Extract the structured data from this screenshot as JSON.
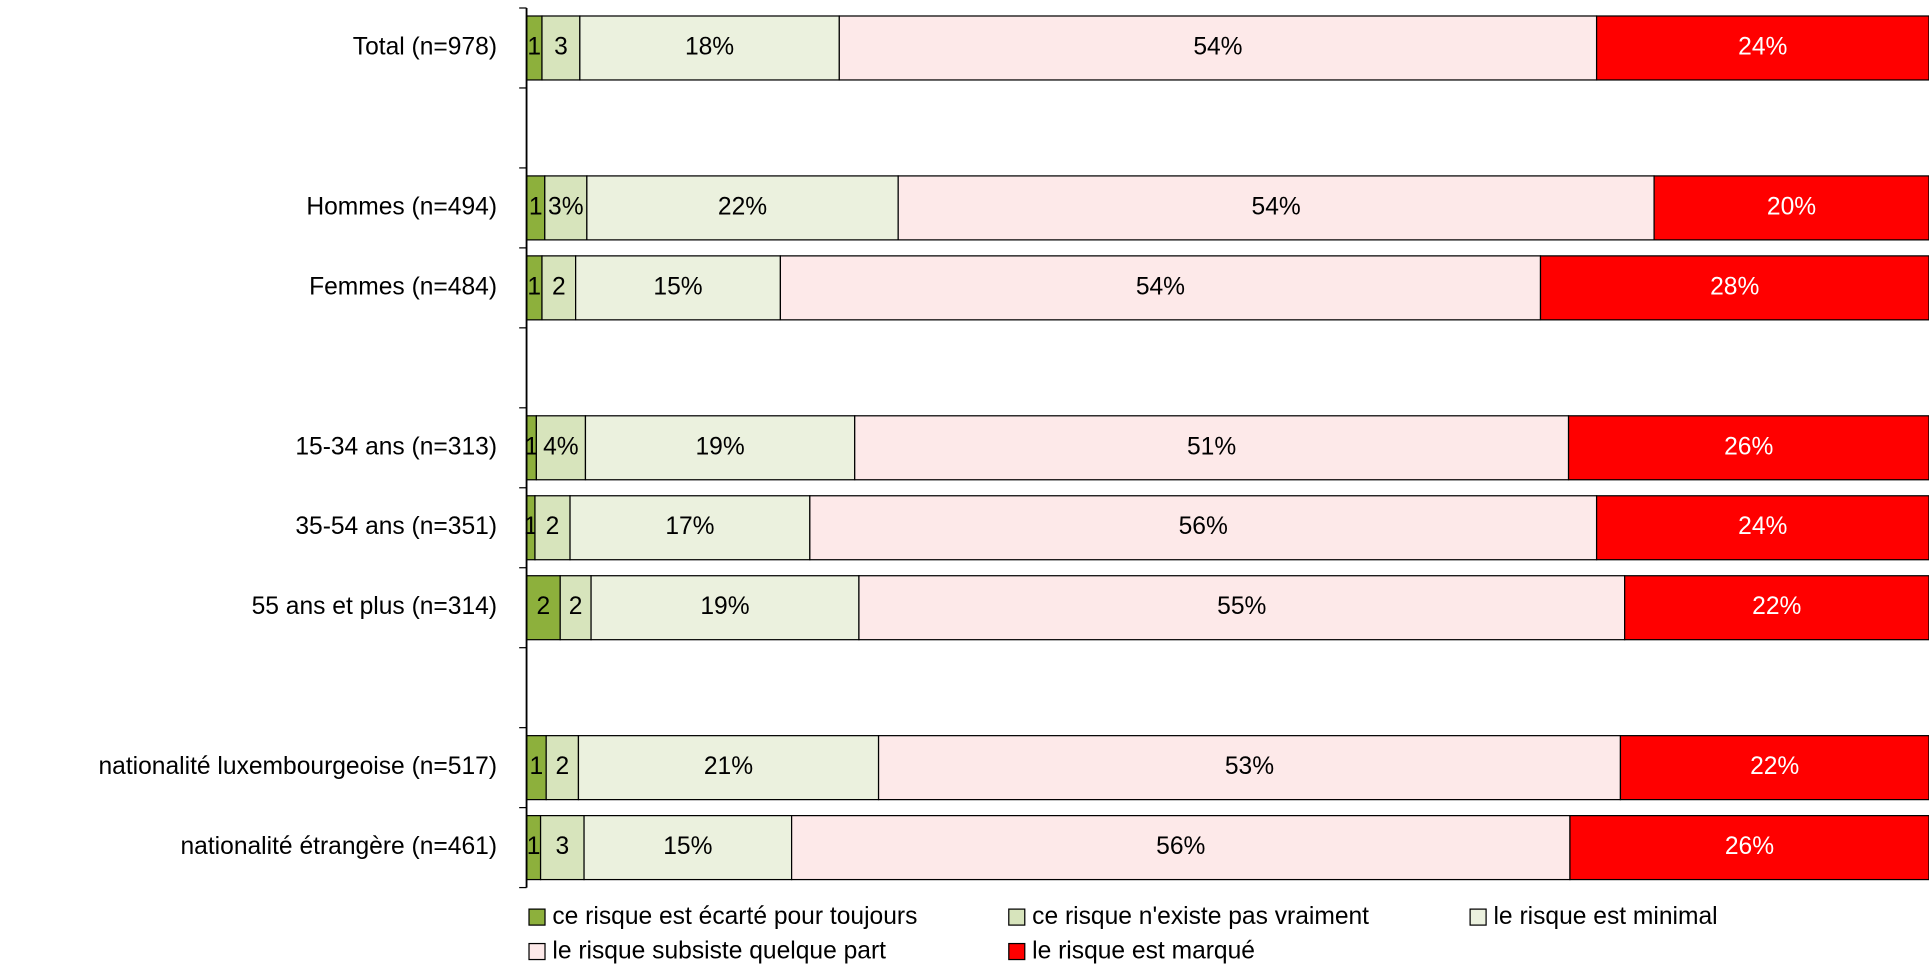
{
  "chart_data": {
    "type": "stacked_bar_horizontal",
    "categories": [
      "Total (n=978)",
      null,
      "Hommes (n=494)",
      "Femmes (n=484)",
      null,
      "15-34 ans (n=313)",
      "35-54 ans (n=351)",
      "55 ans et plus (n=314)",
      null,
      "nationalité luxembourgeoise (n=517)",
      "nationalité étrangère (n=461)"
    ],
    "xlim": [
      0,
      100
    ],
    "series": [
      {
        "name": "ce risque est écarté pour toujours",
        "color": "#8db03c",
        "values": [
          1.1,
          null,
          1.3,
          1.1,
          null,
          0.7,
          0.6,
          2.4,
          null,
          1.4,
          1.0
        ],
        "value_labels": [
          "1",
          null,
          "1",
          "1",
          null,
          "1",
          "1",
          "2",
          null,
          "1",
          "1"
        ]
      },
      {
        "name": "ce risque n'existe pas vraiment",
        "color": "#d7e4bc",
        "values": [
          2.7,
          null,
          3.0,
          2.4,
          null,
          3.5,
          2.5,
          2.2,
          null,
          2.3,
          3.1
        ],
        "value_labels": [
          "3",
          null,
          "3%",
          "2",
          null,
          "4%",
          "2",
          "2",
          null,
          "2",
          "3"
        ]
      },
      {
        "name": "le risque est minimal",
        "color": "#ebf1de",
        "values": [
          18.5,
          null,
          22.2,
          14.6,
          null,
          19.2,
          17.1,
          19.1,
          null,
          21.4,
          14.8
        ],
        "value_labels": [
          "18%",
          null,
          "22%",
          "15%",
          null,
          "19%",
          "17%",
          "19%",
          null,
          "21%",
          "15%"
        ]
      },
      {
        "name": "le risque subsiste quelque part",
        "color": "#fde9e9",
        "values": [
          54.0,
          null,
          53.9,
          54.2,
          null,
          50.9,
          56.1,
          54.6,
          null,
          52.9,
          55.5
        ],
        "value_labels": [
          "54%",
          null,
          "54%",
          "54%",
          null,
          "51%",
          "56%",
          "55%",
          null,
          "53%",
          "56%"
        ]
      },
      {
        "name": "le risque est marqué",
        "color": "#ff0000",
        "values": [
          23.7,
          null,
          19.6,
          27.7,
          null,
          25.7,
          23.7,
          21.7,
          null,
          22.0,
          25.6
        ],
        "value_labels": [
          "24%",
          null,
          "20%",
          "28%",
          null,
          "26%",
          "24%",
          "22%",
          null,
          "22%",
          "26%"
        ]
      }
    ]
  }
}
